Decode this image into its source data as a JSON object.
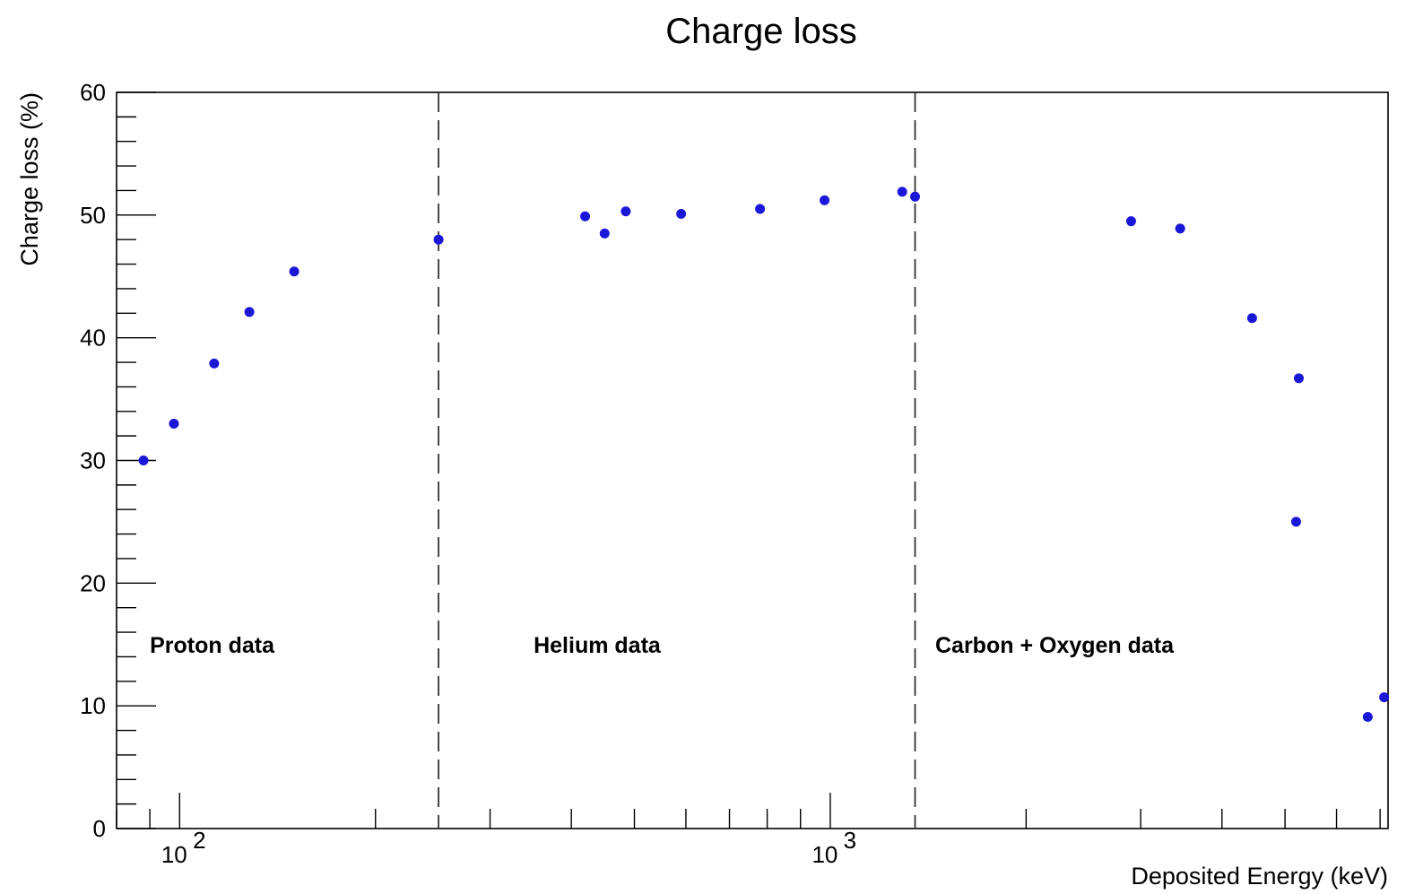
{
  "chart_data": {
    "type": "scatter",
    "title": "Charge loss",
    "xlabel": "Deposited Energy (keV)",
    "ylabel": "Charge loss (%)",
    "x_scale": "log",
    "xlim": [
      80,
      7200
    ],
    "ylim": [
      0,
      60
    ],
    "y_ticks": [
      0,
      10,
      20,
      30,
      40,
      50,
      60
    ],
    "x_major_ticks": [
      100,
      1000
    ],
    "x_tick_labels": [
      {
        "value": 100,
        "base": "10",
        "exp": "2"
      },
      {
        "value": 1000,
        "base": "10",
        "exp": "3"
      }
    ],
    "marker_color": "#1a17d6",
    "region_separators_x": [
      250,
      1350
    ],
    "regions": [
      {
        "label": "Proton data",
        "x": 90,
        "y": 15
      },
      {
        "label": "Helium data",
        "x": 350,
        "y": 15
      },
      {
        "label": "Carbon + Oxygen data",
        "x": 1450,
        "y": 15
      }
    ],
    "points": [
      {
        "x": 88,
        "y": 30.0
      },
      {
        "x": 98,
        "y": 33.0
      },
      {
        "x": 113,
        "y": 37.9
      },
      {
        "x": 128,
        "y": 42.1
      },
      {
        "x": 150,
        "y": 45.4
      },
      {
        "x": 250,
        "y": 48.0
      },
      {
        "x": 420,
        "y": 49.9
      },
      {
        "x": 450,
        "y": 48.5
      },
      {
        "x": 485,
        "y": 50.3
      },
      {
        "x": 590,
        "y": 50.1
      },
      {
        "x": 780,
        "y": 50.5
      },
      {
        "x": 980,
        "y": 51.2
      },
      {
        "x": 1290,
        "y": 51.9
      },
      {
        "x": 1350,
        "y": 51.5
      },
      {
        "x": 2900,
        "y": 49.5
      },
      {
        "x": 3450,
        "y": 48.9
      },
      {
        "x": 4450,
        "y": 41.6
      },
      {
        "x": 5250,
        "y": 36.7
      },
      {
        "x": 5200,
        "y": 25.0
      },
      {
        "x": 6700,
        "y": 9.1
      },
      {
        "x": 7100,
        "y": 10.7
      }
    ]
  }
}
